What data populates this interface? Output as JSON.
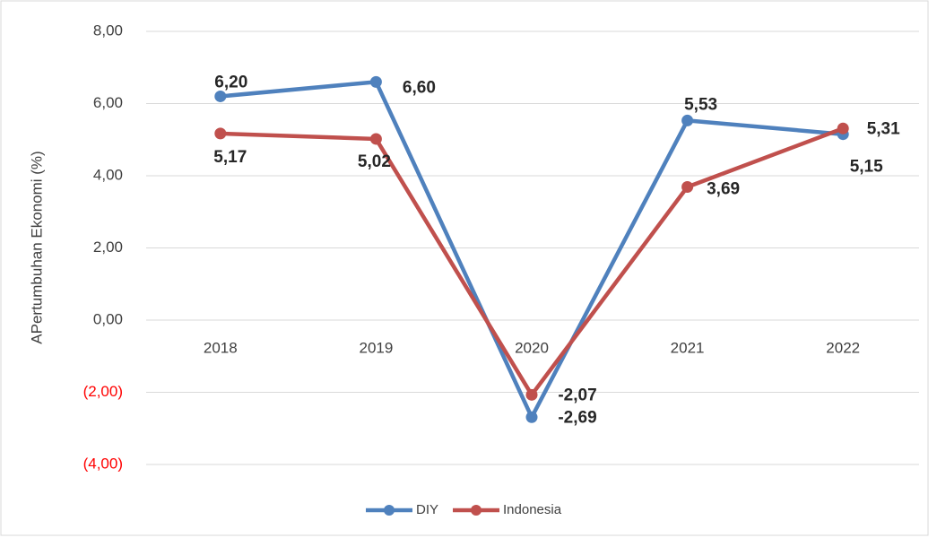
{
  "chart_data": {
    "type": "line",
    "y_label": "APertumbuhan Ekonomi (%)",
    "categories": [
      "2018",
      "2019",
      "2020",
      "2021",
      "2022"
    ],
    "series": [
      {
        "name": "DIY",
        "color": "#4f81bd",
        "values": [
          6.2,
          6.6,
          -2.69,
          5.53,
          5.15
        ],
        "value_labels": [
          "6,20",
          "6,60",
          "-2,69",
          "5,53",
          "5,15"
        ]
      },
      {
        "name": "Indonesia",
        "color": "#c0504d",
        "values": [
          5.17,
          5.02,
          -2.07,
          3.69,
          5.31
        ],
        "value_labels": [
          "5,17",
          "5,02",
          "-2,07",
          "3,69",
          "5,31"
        ]
      }
    ],
    "ylim": [
      -4,
      8
    ],
    "yticks": [
      {
        "value": -4,
        "label": "(4,00)"
      },
      {
        "value": -2,
        "label": "(2,00)"
      },
      {
        "value": 0,
        "label": "0,00"
      },
      {
        "value": 2,
        "label": "2,00"
      },
      {
        "value": 4,
        "label": "4,00"
      },
      {
        "value": 6,
        "label": "6,00"
      },
      {
        "value": 8,
        "label": "8,00"
      }
    ],
    "negative_tick_color": "#ff0000",
    "grid": true,
    "legend": "bottom"
  }
}
